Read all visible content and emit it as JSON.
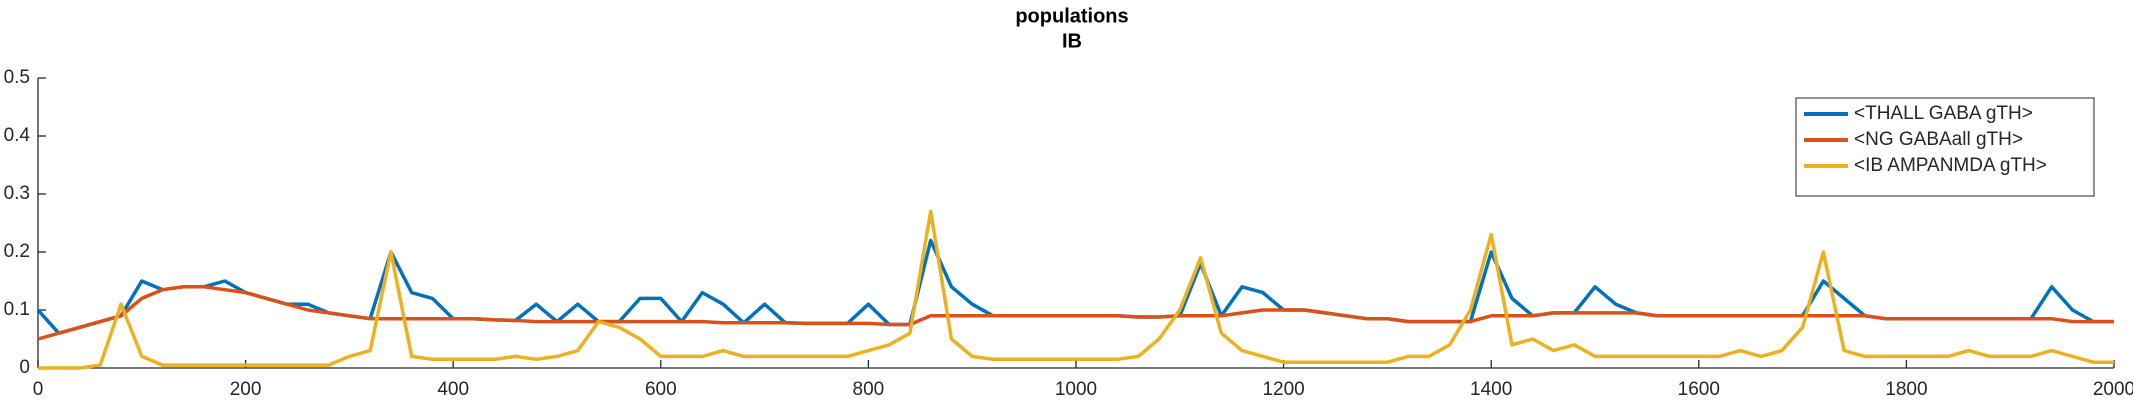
{
  "chart_data": {
    "type": "line",
    "title": "populations",
    "subtitle": "IB",
    "x": [
      0,
      20,
      40,
      60,
      80,
      100,
      120,
      140,
      160,
      180,
      200,
      220,
      240,
      260,
      280,
      300,
      320,
      340,
      360,
      380,
      400,
      420,
      440,
      460,
      480,
      500,
      520,
      540,
      560,
      580,
      600,
      620,
      640,
      660,
      680,
      700,
      720,
      740,
      760,
      780,
      800,
      820,
      840,
      860,
      880,
      900,
      920,
      940,
      960,
      980,
      1000,
      1020,
      1040,
      1060,
      1080,
      1100,
      1120,
      1140,
      1160,
      1180,
      1200,
      1220,
      1240,
      1260,
      1280,
      1300,
      1320,
      1340,
      1360,
      1380,
      1400,
      1420,
      1440,
      1460,
      1480,
      1500,
      1520,
      1540,
      1560,
      1580,
      1600,
      1620,
      1640,
      1660,
      1680,
      1700,
      1720,
      1740,
      1760,
      1780,
      1800,
      1820,
      1840,
      1860,
      1880,
      1900,
      1920,
      1940,
      1960,
      1980,
      2000
    ],
    "series": [
      {
        "name": "<THALL GABA gTH>",
        "color": "#0072bd",
        "values": [
          0.1,
          0.06,
          0.07,
          0.08,
          0.09,
          0.15,
          0.135,
          0.14,
          0.14,
          0.15,
          0.13,
          0.12,
          0.11,
          0.11,
          0.095,
          0.09,
          0.085,
          0.2,
          0.13,
          0.12,
          0.085,
          0.085,
          0.083,
          0.082,
          0.11,
          0.08,
          0.11,
          0.08,
          0.08,
          0.12,
          0.12,
          0.08,
          0.13,
          0.11,
          0.078,
          0.11,
          0.078,
          0.077,
          0.077,
          0.077,
          0.11,
          0.075,
          0.075,
          0.22,
          0.14,
          0.11,
          0.09,
          0.09,
          0.09,
          0.09,
          0.09,
          0.09,
          0.09,
          0.088,
          0.088,
          0.09,
          0.18,
          0.09,
          0.14,
          0.13,
          0.1,
          0.1,
          0.095,
          0.09,
          0.085,
          0.085,
          0.08,
          0.08,
          0.08,
          0.08,
          0.2,
          0.12,
          0.09,
          0.095,
          0.095,
          0.14,
          0.11,
          0.095,
          0.09,
          0.09,
          0.09,
          0.09,
          0.09,
          0.09,
          0.09,
          0.09,
          0.15,
          0.12,
          0.09,
          0.085,
          0.085,
          0.085,
          0.085,
          0.085,
          0.085,
          0.085,
          0.085,
          0.14,
          0.1,
          0.08,
          0.08
        ]
      },
      {
        "name": "<NG GABAall gTH>",
        "color": "#d95319",
        "values": [
          0.05,
          0.06,
          0.07,
          0.08,
          0.09,
          0.12,
          0.135,
          0.14,
          0.14,
          0.135,
          0.13,
          0.12,
          0.11,
          0.1,
          0.095,
          0.09,
          0.085,
          0.085,
          0.085,
          0.085,
          0.085,
          0.085,
          0.083,
          0.082,
          0.08,
          0.08,
          0.08,
          0.08,
          0.08,
          0.08,
          0.08,
          0.08,
          0.08,
          0.078,
          0.078,
          0.078,
          0.078,
          0.077,
          0.077,
          0.077,
          0.077,
          0.075,
          0.075,
          0.09,
          0.09,
          0.09,
          0.09,
          0.09,
          0.09,
          0.09,
          0.09,
          0.09,
          0.09,
          0.088,
          0.088,
          0.09,
          0.09,
          0.09,
          0.095,
          0.1,
          0.1,
          0.1,
          0.095,
          0.09,
          0.085,
          0.085,
          0.08,
          0.08,
          0.08,
          0.08,
          0.09,
          0.09,
          0.09,
          0.095,
          0.095,
          0.095,
          0.095,
          0.095,
          0.09,
          0.09,
          0.09,
          0.09,
          0.09,
          0.09,
          0.09,
          0.09,
          0.09,
          0.09,
          0.09,
          0.085,
          0.085,
          0.085,
          0.085,
          0.085,
          0.085,
          0.085,
          0.085,
          0.085,
          0.08,
          0.08,
          0.08
        ]
      },
      {
        "name": "<IB AMPANMDA gTH>",
        "color": "#edb120",
        "values": [
          0,
          0,
          0,
          0.005,
          0.11,
          0.02,
          0.005,
          0.005,
          0.005,
          0.005,
          0.005,
          0.005,
          0.005,
          0.005,
          0.005,
          0.02,
          0.03,
          0.2,
          0.02,
          0.015,
          0.015,
          0.015,
          0.015,
          0.02,
          0.015,
          0.02,
          0.03,
          0.08,
          0.07,
          0.05,
          0.02,
          0.02,
          0.02,
          0.03,
          0.02,
          0.02,
          0.02,
          0.02,
          0.02,
          0.02,
          0.03,
          0.04,
          0.06,
          0.27,
          0.05,
          0.02,
          0.015,
          0.015,
          0.015,
          0.015,
          0.015,
          0.015,
          0.015,
          0.02,
          0.05,
          0.1,
          0.19,
          0.06,
          0.03,
          0.02,
          0.01,
          0.01,
          0.01,
          0.01,
          0.01,
          0.01,
          0.02,
          0.02,
          0.04,
          0.1,
          0.23,
          0.04,
          0.05,
          0.03,
          0.04,
          0.02,
          0.02,
          0.02,
          0.02,
          0.02,
          0.02,
          0.02,
          0.03,
          0.02,
          0.03,
          0.07,
          0.2,
          0.03,
          0.02,
          0.02,
          0.02,
          0.02,
          0.02,
          0.03,
          0.02,
          0.02,
          0.02,
          0.03,
          0.02,
          0.01,
          0.01
        ]
      }
    ],
    "xlim": [
      0,
      2000
    ],
    "xticks": [
      0,
      200,
      400,
      600,
      800,
      1000,
      1200,
      1400,
      1600,
      1800,
      2000
    ],
    "ylim": [
      0,
      0.5
    ],
    "yticks": [
      0,
      0.1,
      0.2,
      0.3,
      0.4,
      0.5
    ],
    "legend": "upper right"
  }
}
